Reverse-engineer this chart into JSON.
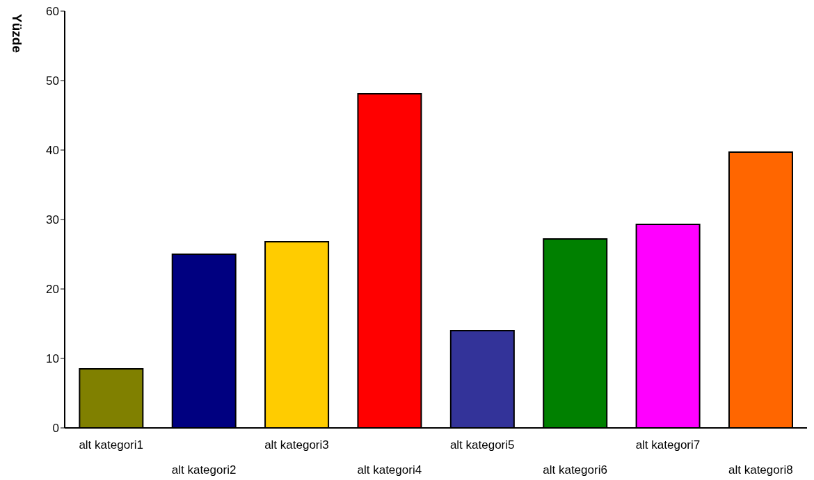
{
  "chart_data": {
    "type": "bar",
    "ylabel": "Yüzde",
    "categories": [
      "alt kategori1",
      "alt kategori2",
      "alt kategori3",
      "alt kategori4",
      "alt kategori5",
      "alt kategori6",
      "alt kategori7",
      "alt kategori8"
    ],
    "values": [
      8.5,
      25,
      26.8,
      48.1,
      14,
      27.2,
      29.3,
      39.7
    ],
    "colors": [
      "#808000",
      "#000080",
      "#ffcc00",
      "#ff0000",
      "#333399",
      "#008000",
      "#ff00ff",
      "#ff6600"
    ],
    "ylim": [
      0,
      60
    ],
    "yticks": [
      0,
      10,
      20,
      30,
      40,
      50,
      60
    ],
    "grid": false,
    "legend": false
  }
}
